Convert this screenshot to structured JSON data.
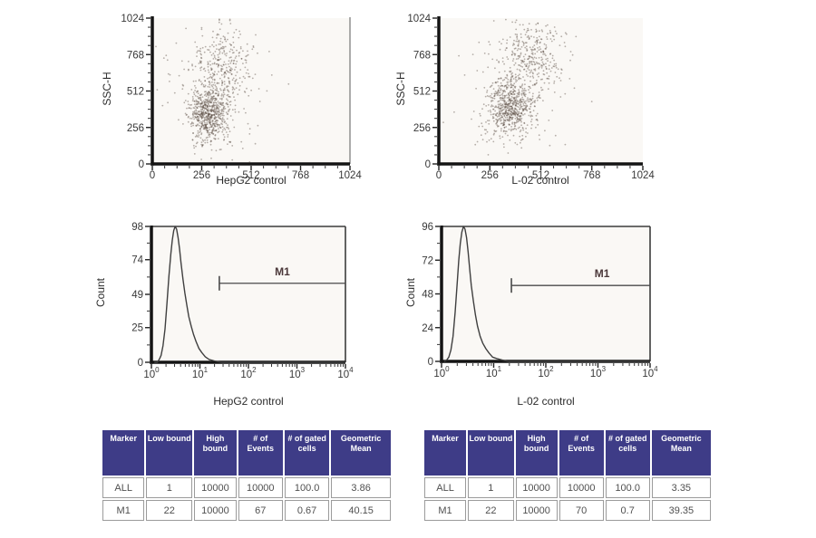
{
  "colors": {
    "table_header_bg": "#3e3c87",
    "table_header_text": "#ffffff",
    "table_body_text": "#4f4f4f",
    "table_border": "#9b9b9b",
    "axis": "#141414",
    "box_border": "#3c3c3c",
    "scatter_right_border": "#8f8f8f",
    "tick_label": "#383838",
    "plot_bg": "#faf8f5",
    "point": "#55483f",
    "curve": "#3f3f3f",
    "marker_line": "#4a4a4a",
    "marker_label": "#4b383a"
  },
  "chart_data": [
    {
      "id": "scatter_hepg2",
      "type": "scatter",
      "xlabel": "HepG2 control",
      "ylabel": "SSC-H",
      "xlim": [
        0,
        1024
      ],
      "ylim": [
        0,
        1024
      ],
      "xticks": [
        0,
        256,
        512,
        768,
        1024
      ],
      "yticks": [
        0,
        256,
        512,
        768,
        1024
      ],
      "grid": false,
      "seed": 11,
      "clusters": [
        {
          "cx": 290,
          "cy": 355,
          "sdx": 50,
          "sdy": 100,
          "n": 620
        },
        {
          "cx": 355,
          "cy": 700,
          "sdx": 75,
          "sdy": 145,
          "n": 300
        },
        {
          "cx": 320,
          "cy": 480,
          "sdx": 140,
          "sdy": 240,
          "n": 140
        }
      ]
    },
    {
      "id": "scatter_l02",
      "type": "scatter",
      "xlabel": "L-02 control",
      "ylabel": "SSC-H",
      "xlim": [
        0,
        1024
      ],
      "ylim": [
        0,
        1024
      ],
      "xticks": [
        0,
        256,
        512,
        768,
        1024
      ],
      "yticks": [
        0,
        256,
        512,
        768,
        1024
      ],
      "grid": false,
      "seed": 23,
      "clusters": [
        {
          "cx": 355,
          "cy": 395,
          "sdx": 52,
          "sdy": 100,
          "n": 580
        },
        {
          "cx": 465,
          "cy": 750,
          "sdx": 80,
          "sdy": 140,
          "n": 330
        },
        {
          "cx": 350,
          "cy": 500,
          "sdx": 150,
          "sdy": 250,
          "n": 150
        }
      ]
    },
    {
      "id": "hist_hepg2",
      "type": "line",
      "xlabel": "HepG2 control",
      "ylabel": "Count",
      "x_scale": "log10",
      "xlim_decades": [
        0,
        4
      ],
      "xtick_decades": [
        0,
        1,
        2,
        3,
        4
      ],
      "ylim": [
        0,
        98
      ],
      "yticks": [
        0,
        25,
        49,
        74,
        98
      ],
      "grid": false,
      "curve": [
        [
          0.06,
          0
        ],
        [
          0.12,
          0
        ],
        [
          0.16,
          2
        ],
        [
          0.2,
          5
        ],
        [
          0.24,
          12
        ],
        [
          0.28,
          24
        ],
        [
          0.32,
          42
        ],
        [
          0.36,
          62
        ],
        [
          0.4,
          78
        ],
        [
          0.43,
          88
        ],
        [
          0.46,
          95
        ],
        [
          0.49,
          98
        ],
        [
          0.52,
          96
        ],
        [
          0.55,
          90
        ],
        [
          0.58,
          82
        ],
        [
          0.61,
          72
        ],
        [
          0.65,
          60
        ],
        [
          0.69,
          50
        ],
        [
          0.73,
          41
        ],
        [
          0.77,
          33
        ],
        [
          0.82,
          26
        ],
        [
          0.87,
          20
        ],
        [
          0.92,
          15
        ],
        [
          0.98,
          10
        ],
        [
          1.04,
          7
        ],
        [
          1.11,
          4
        ],
        [
          1.19,
          2
        ],
        [
          1.3,
          1
        ],
        [
          1.44,
          0
        ],
        [
          4,
          0
        ]
      ],
      "marker": {
        "label": "M1",
        "from_decade": 1.4,
        "to_decade": 4.0,
        "y_value": 57,
        "label_decade": 2.7
      }
    },
    {
      "id": "hist_l02",
      "type": "line",
      "xlabel": "L-02 control",
      "ylabel": "Count",
      "x_scale": "log10",
      "xlim_decades": [
        0,
        4
      ],
      "xtick_decades": [
        0,
        1,
        2,
        3,
        4
      ],
      "ylim": [
        0,
        96
      ],
      "yticks": [
        0,
        24,
        48,
        72,
        96
      ],
      "grid": false,
      "curve": [
        [
          0.05,
          0
        ],
        [
          0.1,
          1
        ],
        [
          0.14,
          3
        ],
        [
          0.18,
          8
        ],
        [
          0.22,
          18
        ],
        [
          0.26,
          35
        ],
        [
          0.3,
          56
        ],
        [
          0.33,
          72
        ],
        [
          0.36,
          84
        ],
        [
          0.39,
          92
        ],
        [
          0.42,
          96
        ],
        [
          0.45,
          94
        ],
        [
          0.48,
          88
        ],
        [
          0.51,
          78
        ],
        [
          0.54,
          66
        ],
        [
          0.57,
          54
        ],
        [
          0.61,
          43
        ],
        [
          0.65,
          33
        ],
        [
          0.69,
          25
        ],
        [
          0.74,
          18
        ],
        [
          0.79,
          13
        ],
        [
          0.85,
          9
        ],
        [
          0.91,
          6
        ],
        [
          0.98,
          3
        ],
        [
          1.06,
          2
        ],
        [
          1.16,
          1
        ],
        [
          1.28,
          0
        ],
        [
          4,
          0
        ]
      ],
      "marker": {
        "label": "M1",
        "from_decade": 1.34,
        "to_decade": 4.0,
        "y_value": 54,
        "label_decade": 3.08
      }
    }
  ],
  "tables": [
    {
      "id": "stats_hepg2",
      "headers": [
        "Marker",
        "Low bound",
        "High bound",
        "# of Events",
        "# of gated cells",
        "Geometric Mean"
      ],
      "rows": [
        [
          "ALL",
          "1",
          "10000",
          "10000",
          "100.0",
          "3.86"
        ],
        [
          "M1",
          "22",
          "10000",
          "67",
          "0.67",
          "40.15"
        ]
      ]
    },
    {
      "id": "stats_l02",
      "headers": [
        "Marker",
        "Low bound",
        "High bound",
        "# of Events",
        "# of gated cells",
        "Geometric Mean"
      ],
      "rows": [
        [
          "ALL",
          "1",
          "10000",
          "10000",
          "100.0",
          "3.35"
        ],
        [
          "M1",
          "22",
          "10000",
          "70",
          "0.7",
          "39.35"
        ]
      ]
    }
  ]
}
